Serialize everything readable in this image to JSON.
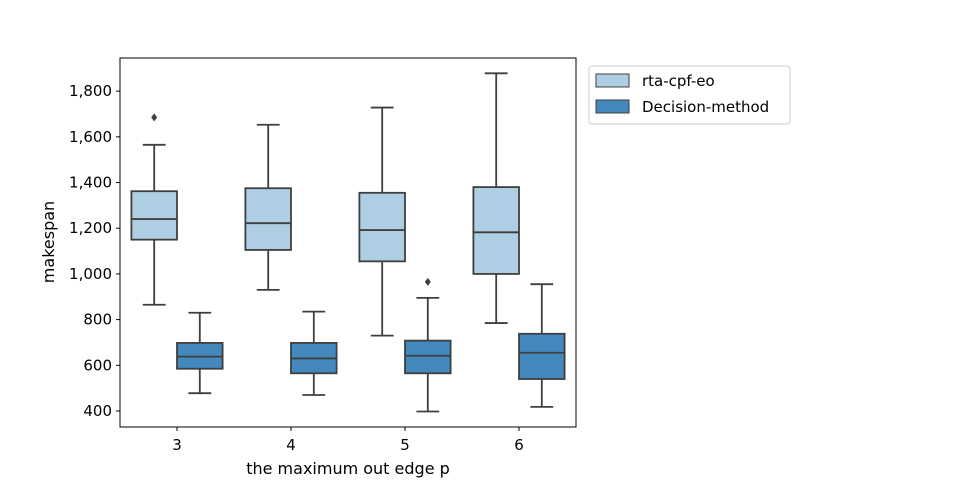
{
  "chart_data": {
    "type": "box",
    "xlabel": "the maximum out edge p",
    "ylabel": "makespan",
    "categories": [
      "3",
      "4",
      "5",
      "6"
    ],
    "ylim": [
      330,
      1945
    ],
    "yticks": [
      400,
      600,
      800,
      1000,
      1200,
      1400,
      1600,
      1800
    ],
    "ytick_labels": [
      "400",
      "600",
      "800",
      "1,000",
      "1,200",
      "1,400",
      "1,600",
      "1,800"
    ],
    "grid": false,
    "legend_position": "outside-top-right",
    "series": [
      {
        "name": "rta-cpf-eo",
        "color": "#aecfe3",
        "boxes": [
          {
            "whisker_low": 865,
            "q1": 1150,
            "median": 1240,
            "q3": 1362,
            "whisker_high": 1565,
            "outliers": [
              1685
            ]
          },
          {
            "whisker_low": 930,
            "q1": 1105,
            "median": 1222,
            "q3": 1375,
            "whisker_high": 1653,
            "outliers": []
          },
          {
            "whisker_low": 730,
            "q1": 1055,
            "median": 1192,
            "q3": 1355,
            "whisker_high": 1728,
            "outliers": []
          },
          {
            "whisker_low": 785,
            "q1": 1000,
            "median": 1182,
            "q3": 1380,
            "whisker_high": 1878,
            "outliers": []
          }
        ]
      },
      {
        "name": "Decision-method",
        "color": "#4389be",
        "boxes": [
          {
            "whisker_low": 478,
            "q1": 585,
            "median": 638,
            "q3": 698,
            "whisker_high": 830,
            "outliers": []
          },
          {
            "whisker_low": 470,
            "q1": 565,
            "median": 630,
            "q3": 698,
            "whisker_high": 835,
            "outliers": []
          },
          {
            "whisker_low": 398,
            "q1": 565,
            "median": 642,
            "q3": 708,
            "whisker_high": 895,
            "outliers": [
              965
            ]
          },
          {
            "whisker_low": 418,
            "q1": 540,
            "median": 655,
            "q3": 738,
            "whisker_high": 955,
            "outliers": []
          }
        ]
      }
    ]
  }
}
